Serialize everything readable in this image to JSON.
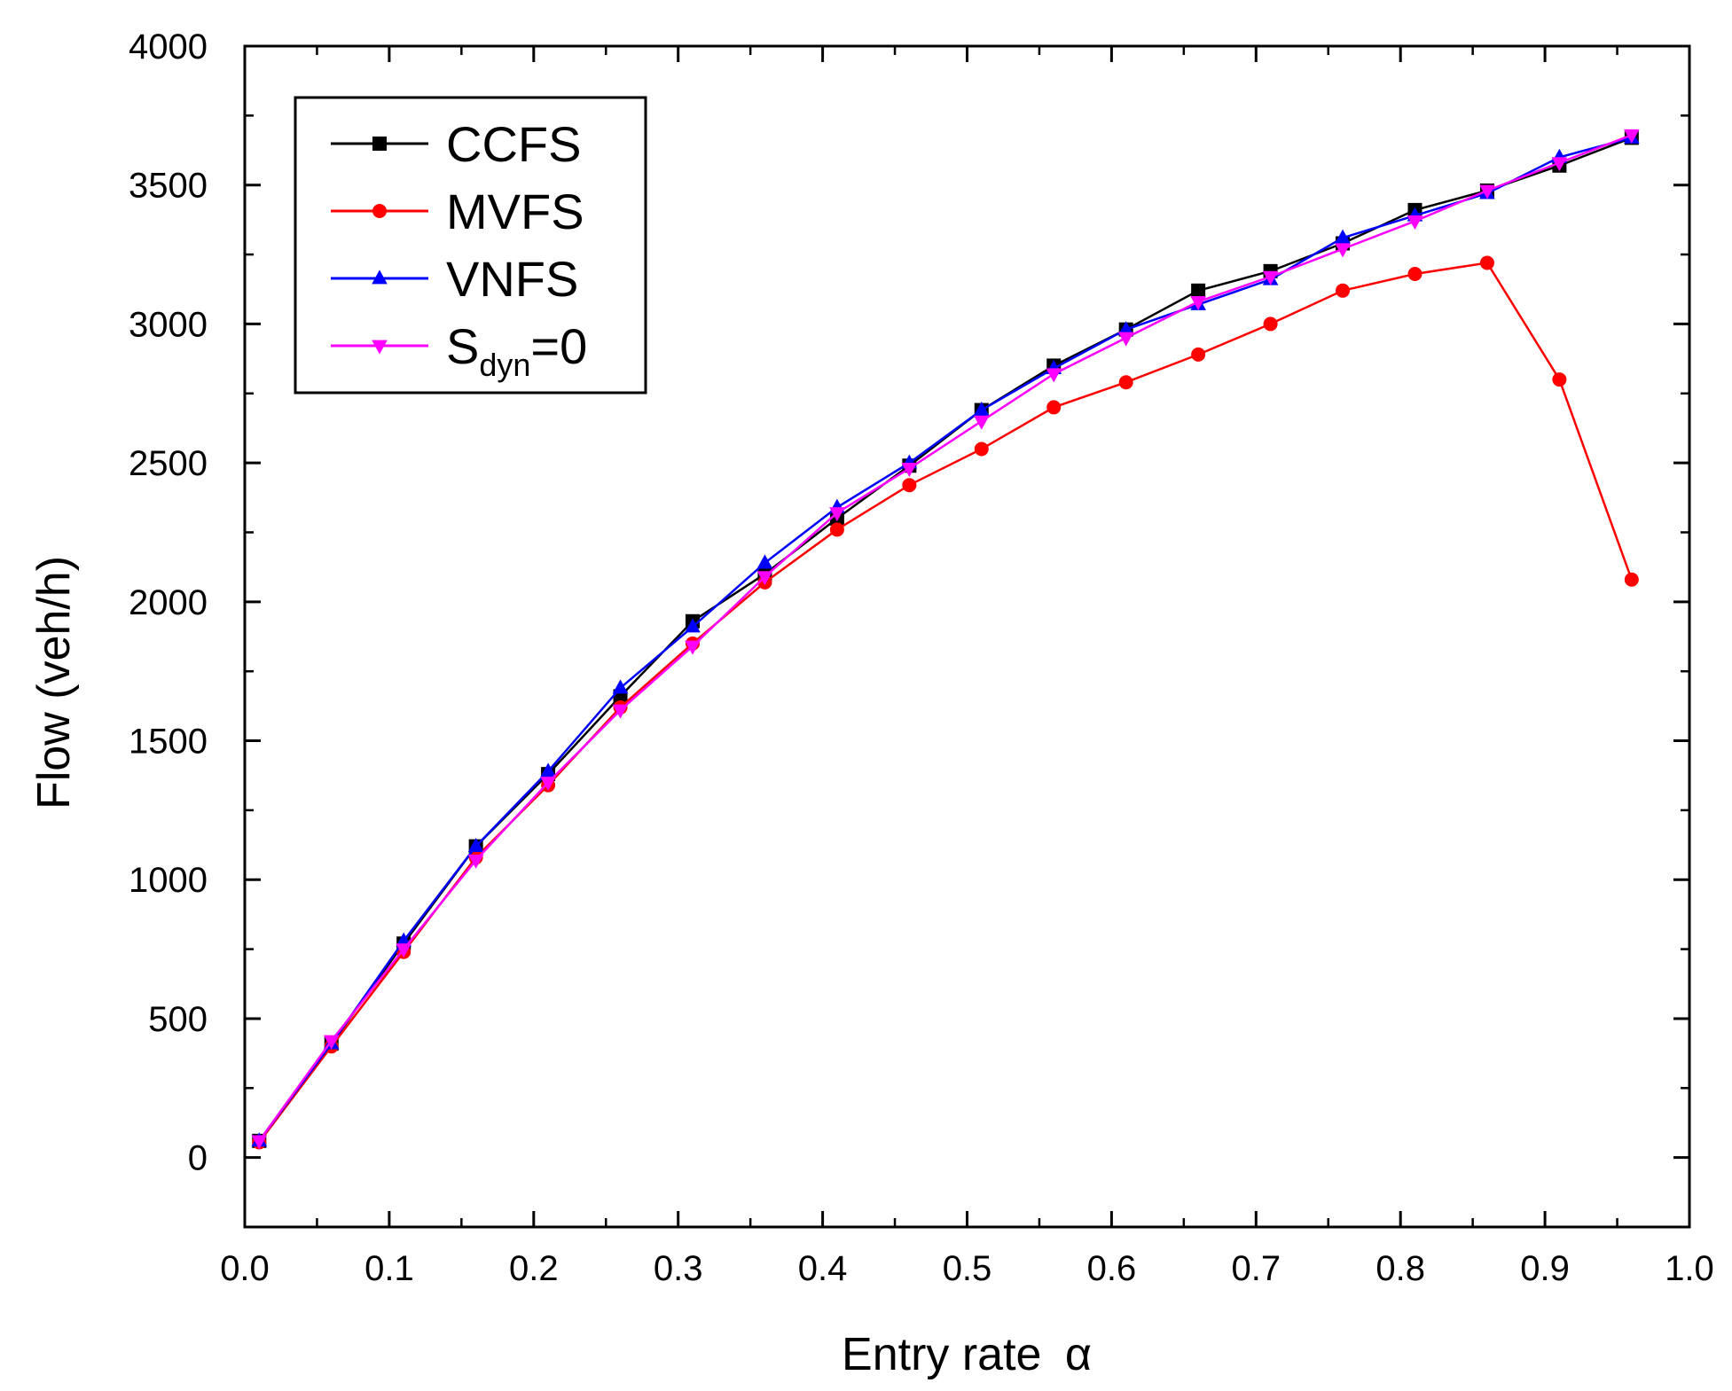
{
  "chart_data": {
    "type": "line",
    "title": "",
    "xlabel": "Entry rate",
    "xlabel_symbol": "α",
    "ylabel": "Flow (veh/h)",
    "xlim": [
      0.0,
      1.0
    ],
    "ylim": [
      -250,
      4000
    ],
    "x_ticks": [
      0.0,
      0.1,
      0.2,
      0.3,
      0.4,
      0.5,
      0.6,
      0.7,
      0.8,
      0.9,
      1.0
    ],
    "x_tick_labels": [
      "0.0",
      "0.1",
      "0.2",
      "0.3",
      "0.4",
      "0.5",
      "0.6",
      "0.7",
      "0.8",
      "0.9",
      "1.0"
    ],
    "y_ticks": [
      0,
      500,
      1000,
      1500,
      2000,
      2500,
      3000,
      3500,
      4000
    ],
    "y_tick_labels": [
      "0",
      "500",
      "1000",
      "1500",
      "2000",
      "2500",
      "3000",
      "3500",
      "4000"
    ],
    "grid": false,
    "legend_position": "top-left",
    "x": [
      0.01,
      0.06,
      0.11,
      0.16,
      0.21,
      0.26,
      0.31,
      0.36,
      0.41,
      0.46,
      0.51,
      0.56,
      0.61,
      0.66,
      0.71,
      0.76,
      0.81,
      0.86,
      0.91,
      0.96
    ],
    "series": [
      {
        "name": "CCFS",
        "color": "#000000",
        "marker": "square",
        "values": [
          60,
          410,
          770,
          1120,
          1380,
          1660,
          1930,
          2100,
          2300,
          2490,
          2690,
          2850,
          2980,
          3120,
          3190,
          3290,
          3410,
          3480,
          3570,
          3670
        ]
      },
      {
        "name": "MVFS",
        "color": "#ff0000",
        "marker": "circle",
        "values": [
          55,
          400,
          740,
          1080,
          1340,
          1620,
          1850,
          2070,
          2260,
          2420,
          2550,
          2700,
          2790,
          2890,
          3000,
          3120,
          3180,
          3220,
          2800,
          2080
        ]
      },
      {
        "name": "VNFS",
        "color": "#0000ff",
        "marker": "triangle-up",
        "values": [
          60,
          410,
          780,
          1120,
          1390,
          1690,
          1910,
          2140,
          2340,
          2500,
          2690,
          2840,
          2980,
          3070,
          3160,
          3310,
          3390,
          3470,
          3600,
          3670
        ]
      },
      {
        "name": "S",
        "name_subscript": "dyn",
        "name_suffix": "=0",
        "color": "#ff00ff",
        "marker": "triangle-down",
        "values": [
          60,
          420,
          750,
          1070,
          1350,
          1610,
          1840,
          2090,
          2320,
          2480,
          2650,
          2820,
          2950,
          3080,
          3170,
          3270,
          3370,
          3480,
          3580,
          3680
        ]
      }
    ]
  }
}
